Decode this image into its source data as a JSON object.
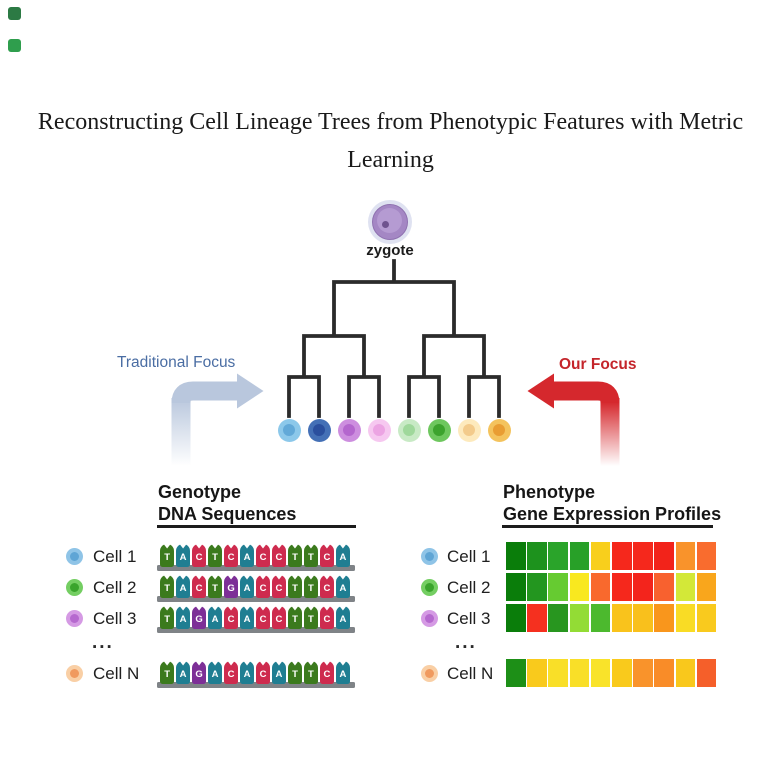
{
  "title": "Reconstructing Cell Lineage Trees from Phenotypic Features with Metric Learning",
  "zygote_label": "zygote",
  "corner_marks": [
    {
      "color": "#2c7a44"
    },
    {
      "color": "#2f9e4d"
    }
  ],
  "arrows": {
    "traditional": {
      "label": "Traditional Focus",
      "arrow_color": "#b9c7dd",
      "text_color": "#4a6da3"
    },
    "ours": {
      "label": "Our Focus",
      "arrow_color": "#d5282d",
      "text_color": "#c4252b"
    }
  },
  "tree": {
    "line_color": "#2b2b2b",
    "leaves": [
      {
        "outer": "#8cc8ea",
        "inner": "#62a9d8"
      },
      {
        "outer": "#4470b6",
        "inner": "#2a4f9e"
      },
      {
        "outer": "#cd8edf",
        "inner": "#b466ce"
      },
      {
        "outer": "#f6c8f0",
        "inner": "#eca4e3"
      },
      {
        "outer": "#c8eac5",
        "inner": "#9fd89b"
      },
      {
        "outer": "#6ec75e",
        "inner": "#3ca32d"
      },
      {
        "outer": "#fdeabd",
        "inner": "#f3cb8b"
      },
      {
        "outer": "#f4c35d",
        "inner": "#e99d32"
      }
    ]
  },
  "genotype": {
    "heading": "Genotype",
    "subheading": "DNA Sequences",
    "ellipsis": "...",
    "nucleotide_colors": {
      "T": "#3b7a1d",
      "A": "#1f7e92",
      "C": "#ce2b4e",
      "G": "#7d2f97"
    },
    "rows": [
      {
        "label": "Cell 1",
        "dot_outer": "#8fc4e7",
        "dot_inner": "#5fa5d5",
        "sequence": "TACTCACCTTCA"
      },
      {
        "label": "Cell 2",
        "dot_outer": "#74ce62",
        "dot_inner": "#3aa42c",
        "sequence": "TACTGACCTTCA"
      },
      {
        "label": "Cell 3",
        "dot_outer": "#d59ae4",
        "dot_inner": "#b669cf",
        "sequence": "TAGACACCTTCA"
      },
      {
        "label": "Cell N",
        "dot_outer": "#f9cfa5",
        "dot_inner": "#f09a5f",
        "sequence": "TAGACACATTCA"
      }
    ]
  },
  "phenotype": {
    "heading": "Phenotype",
    "subheading": "Gene Expression Profiles",
    "ellipsis": "...",
    "rows": [
      {
        "label": "Cell 1",
        "dot_outer": "#8fc4e7",
        "dot_inner": "#5fa5d5",
        "values": [
          "#0a7d0a",
          "#1d921d",
          "#2aa42a",
          "#28a028",
          "#f8cf1c",
          "#f5281c",
          "#f5281c",
          "#f2231a",
          "#f9932b",
          "#f96c2e"
        ]
      },
      {
        "label": "Cell 2",
        "dot_outer": "#74ce62",
        "dot_inner": "#3aa42c",
        "values": [
          "#0a7d0a",
          "#23961f",
          "#66cb31",
          "#f9e81f",
          "#f9692d",
          "#f5281c",
          "#f3241c",
          "#f8612f",
          "#d3e838",
          "#f9a61c"
        ]
      },
      {
        "label": "Cell 3",
        "dot_outer": "#d59ae4",
        "dot_inner": "#b669cf",
        "values": [
          "#0a7d0a",
          "#f5301f",
          "#28961f",
          "#93dc35",
          "#4cb92e",
          "#f9c31c",
          "#f9c01c",
          "#f9961c",
          "#f9dc25",
          "#f9ca1e"
        ]
      },
      {
        "label": "Cell N",
        "dot_outer": "#f9cfa5",
        "dot_inner": "#f09a5f",
        "values": [
          "#1d8f17",
          "#f9ca1c",
          "#f9df28",
          "#f9df28",
          "#f9e32a",
          "#f9ca1c",
          "#f9932b",
          "#f98c28",
          "#f9c81c",
          "#f55f2a"
        ]
      }
    ]
  }
}
